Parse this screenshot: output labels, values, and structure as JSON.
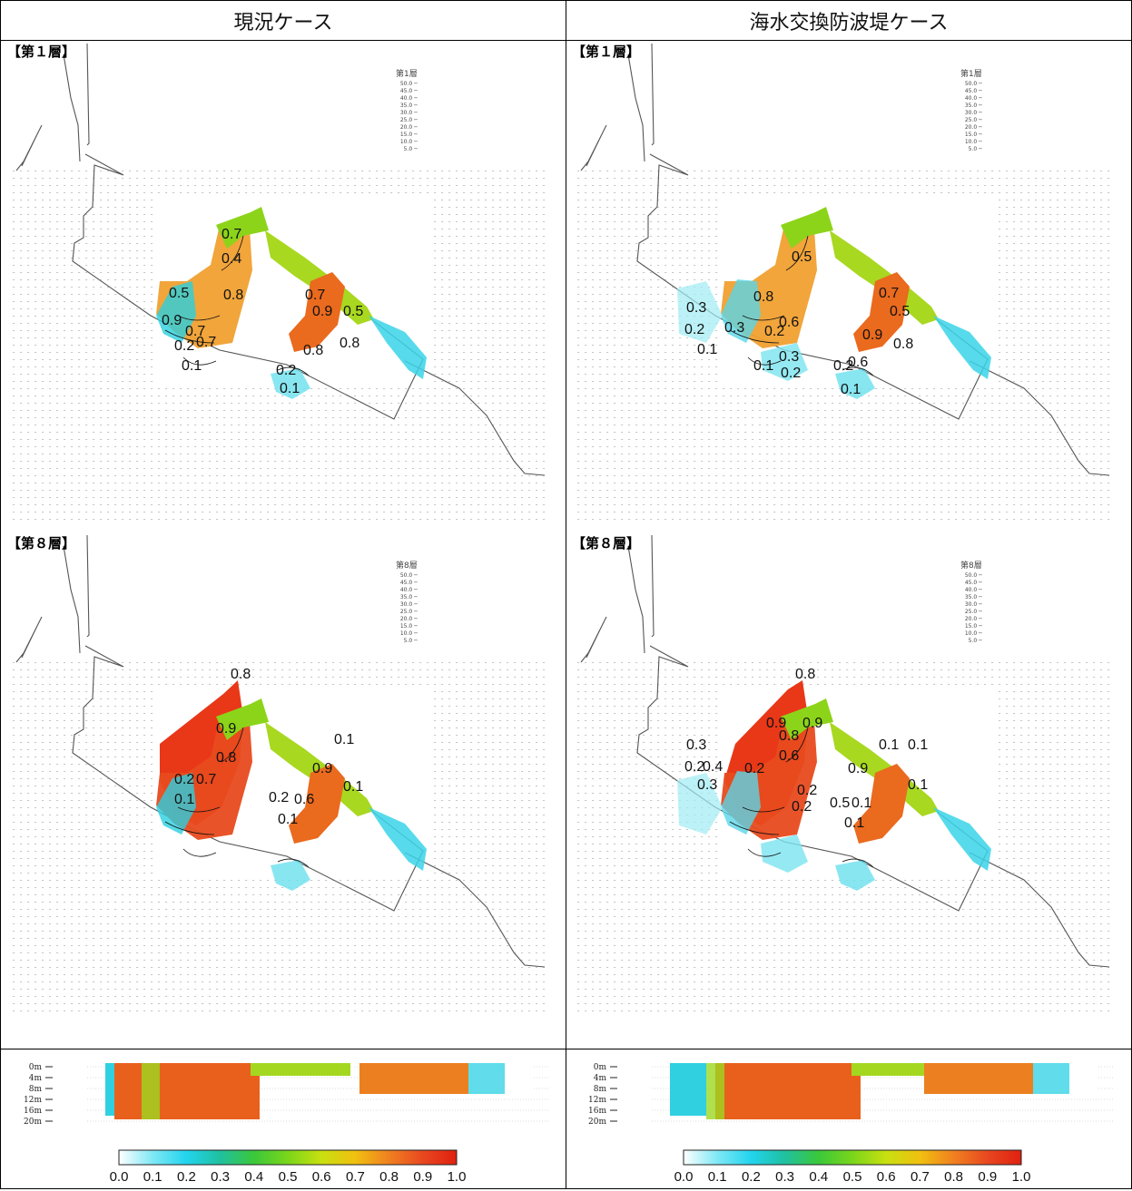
{
  "headers": {
    "left": "現況ケース",
    "right": "海水交換防波堤ケース"
  },
  "panels": {
    "top_left": {
      "label": "【第１層】",
      "legend_title": "第1層"
    },
    "top_right": {
      "label": "【第１層】",
      "legend_title": "第1層"
    },
    "mid_left": {
      "label": "【第８層】",
      "legend_title": "第8層"
    },
    "mid_right": {
      "label": "【第８層】",
      "legend_title": "第8層"
    }
  },
  "vector_scale": [
    "50.0",
    "45.0",
    "40.0",
    "35.0",
    "30.0",
    "25.0",
    "20.0",
    "15.0",
    "10.0",
    "5.0"
  ],
  "contour_labels": {
    "top_left": [
      "0.7",
      "0.4",
      "0.5",
      "0.8",
      "0.7",
      "0.9",
      "0.7",
      "0.9",
      "0.5",
      "0.2",
      "0.7",
      "0.8",
      "0.8",
      "0.1",
      "0.2",
      "0.1"
    ],
    "top_right": [
      "0.5",
      "0.8",
      "0.7",
      "0.3",
      "0.5",
      "0.2",
      "0.3",
      "0.2",
      "0.6",
      "0.9",
      "0.8",
      "0.1",
      "0.1",
      "0.3",
      "0.2",
      "0.2",
      "0.6",
      "0.1"
    ],
    "mid_left": [
      "0.8",
      "0.9",
      "0.8",
      "0.1",
      "0.2",
      "0.7",
      "0.9",
      "0.1",
      "0.2",
      "0.6",
      "0.1",
      "0.1"
    ],
    "mid_right": [
      "0.8",
      "0.9",
      "0.9",
      "0.3",
      "0.8",
      "0.6",
      "0.2",
      "0.4",
      "0.2",
      "0.1",
      "0.1",
      "0.9",
      "0.1",
      "0.3",
      "0.2",
      "0.2",
      "0.5",
      "0.1",
      "0.1"
    ]
  },
  "depth_labels": [
    "0m",
    "4m",
    "8m",
    "12m",
    "16m",
    "20m"
  ],
  "colorbar": {
    "ticks": [
      "0.0",
      "0.1",
      "0.2",
      "0.3",
      "0.4",
      "0.5",
      "0.6",
      "0.7",
      "0.8",
      "0.9",
      "1.0"
    ],
    "colors": [
      "#ffffff",
      "#7fe8f5",
      "#22d4ee",
      "#20c0a0",
      "#3ac83a",
      "#7ad61a",
      "#c8e010",
      "#f0c010",
      "#f08020",
      "#e84820",
      "#e02010"
    ]
  }
}
